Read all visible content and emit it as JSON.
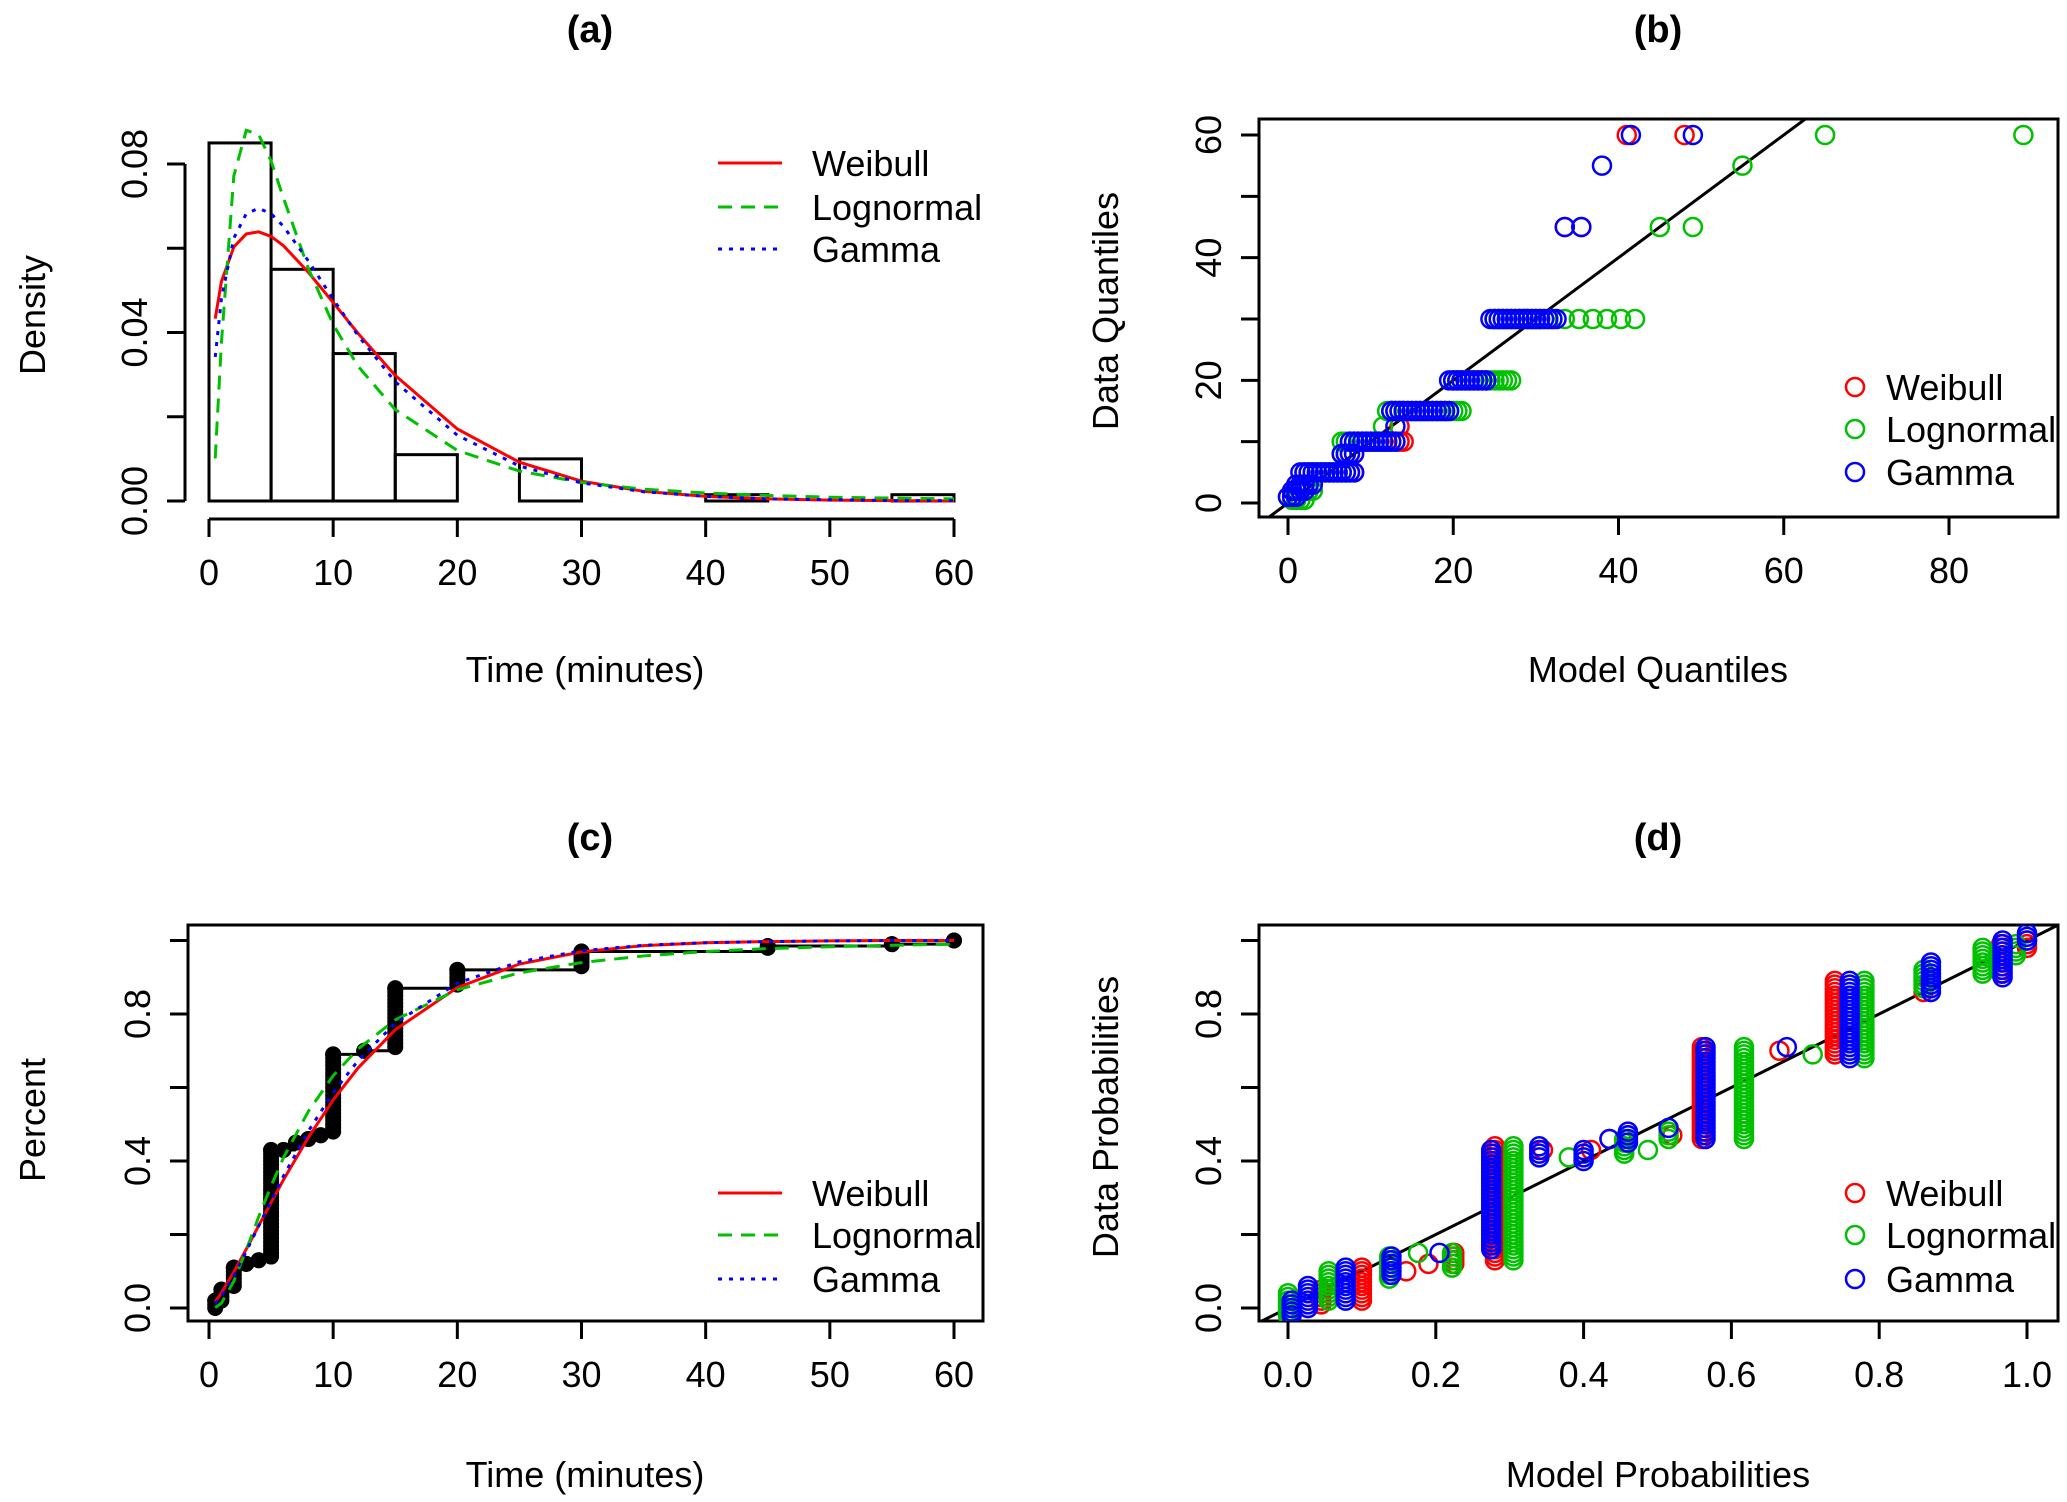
{
  "chart_data": [
    {
      "panel_title": "(a)",
      "type": "histogram+line",
      "xlabel": "Time (minutes)",
      "ylabel": "Density",
      "xlim": [
        0,
        60
      ],
      "ylim": [
        0,
        0.08
      ],
      "xticks": [
        0,
        10,
        20,
        30,
        40,
        50,
        60
      ],
      "xtick_labels": [
        "0",
        "10",
        "20",
        "30",
        "40",
        "50",
        "60"
      ],
      "yticks": [
        0,
        0.02,
        0.04,
        0.06,
        0.08
      ],
      "ytick_labels": [
        "0.00",
        "",
        "0.04",
        "",
        "0.08"
      ],
      "histogram": {
        "bin_edges": [
          0,
          5,
          10,
          15,
          20,
          25,
          30,
          35,
          40,
          45,
          50,
          55,
          60
        ],
        "density": [
          0.085,
          0.055,
          0.035,
          0.011,
          0,
          0.01,
          0,
          0,
          0.0015,
          0,
          0,
          0.0015
        ]
      },
      "curve_x": [
        0.5,
        1,
        2,
        3,
        4,
        5,
        6,
        8,
        10,
        12,
        15,
        20,
        25,
        30,
        35,
        40,
        45,
        50,
        55,
        60
      ],
      "series": [
        {
          "name": "Weibull",
          "color": "#ff0000",
          "linestyle": "solid",
          "values": [
            0.0433,
            0.0521,
            0.0603,
            0.0634,
            0.0639,
            0.0628,
            0.0606,
            0.0543,
            0.0471,
            0.0398,
            0.0298,
            0.0171,
            0.0092,
            0.0047,
            0.0023,
            0.0011,
            0.0005,
            0.0002,
            0.0001,
            0.0
          ]
        },
        {
          "name": "Lognormal",
          "color": "#00c000",
          "linestyle": "dashed",
          "values": [
            0.0101,
            0.0376,
            0.0772,
            0.088,
            0.087,
            0.0807,
            0.0719,
            0.0552,
            0.0419,
            0.032,
            0.0217,
            0.012,
            0.0071,
            0.0044,
            0.0028,
            0.0019,
            0.0013,
            0.0009,
            0.0007,
            0.0005
          ]
        },
        {
          "name": "Gamma",
          "color": "#0000ff",
          "linestyle": "dotted",
          "values": [
            0.0342,
            0.048,
            0.0624,
            0.0682,
            0.0695,
            0.0682,
            0.0652,
            0.057,
            0.0479,
            0.0393,
            0.0283,
            0.0156,
            0.0083,
            0.0043,
            0.0022,
            0.0011,
            0.0005,
            0.0003,
            0.0001,
            0.0001
          ]
        }
      ],
      "legend_position": "top-right"
    },
    {
      "panel_title": "(b)",
      "type": "scatter",
      "xlabel": "Model Quantiles",
      "ylabel": "Data Quantiles",
      "xlim": [
        0,
        90
      ],
      "ylim": [
        0,
        60
      ],
      "xticks": [
        0,
        20,
        40,
        60,
        80
      ],
      "xtick_labels": [
        "0",
        "20",
        "40",
        "60",
        "80"
      ],
      "yticks": [
        0,
        10,
        20,
        30,
        40,
        50,
        60
      ],
      "ytick_labels": [
        "0",
        "",
        "20",
        "",
        "40",
        "",
        "60"
      ],
      "reference_line": "y = x",
      "series": [
        {
          "name": "Weibull",
          "color": "#ff0000",
          "runs_y_xfrom_xto": [
            [
              1,
              0,
              1
            ],
            [
              2,
              0.5,
              2
            ],
            [
              3,
              1,
              3
            ],
            [
              5,
              2,
              8
            ],
            [
              8,
              6.5,
              8
            ],
            [
              10,
              7.5,
              14
            ],
            [
              12.5,
              13.5,
              13.5
            ],
            [
              15,
              12.5,
              19
            ],
            [
              20,
              20,
              24
            ],
            [
              30,
              25,
              30.5
            ],
            [
              45,
              33.5,
              33.5
            ],
            [
              45,
              35.5,
              35.5
            ],
            [
              60,
              41,
              41
            ],
            [
              60,
              48,
              48
            ]
          ]
        },
        {
          "name": "Lognormal",
          "color": "#00c000",
          "runs_y_xfrom_xto": [
            [
              0.5,
              0.5,
              2
            ],
            [
              2,
              1,
              3
            ],
            [
              5,
              2.5,
              7
            ],
            [
              8,
              6.5,
              7
            ],
            [
              10,
              6.5,
              12
            ],
            [
              12.5,
              11.5,
              11.5
            ],
            [
              15,
              12,
              21
            ],
            [
              20,
              20,
              27
            ],
            [
              30,
              25,
              32
            ],
            [
              30,
              33.5,
              42
            ],
            [
              45,
              45,
              45
            ],
            [
              45,
              49,
              49
            ],
            [
              55,
              55,
              55
            ],
            [
              60,
              65,
              65
            ],
            [
              60,
              89,
              89
            ]
          ]
        },
        {
          "name": "Gamma",
          "color": "#0000ff",
          "runs_y_xfrom_xto": [
            [
              1,
              0,
              1
            ],
            [
              2,
              0.5,
              2
            ],
            [
              3,
              1,
              3
            ],
            [
              5,
              1.5,
              8
            ],
            [
              8,
              6.5,
              8
            ],
            [
              10,
              7.5,
              13
            ],
            [
              12.5,
              13,
              13
            ],
            [
              15,
              12.5,
              19.5
            ],
            [
              20,
              19.5,
              24
            ],
            [
              30,
              24.5,
              32.5
            ],
            [
              45,
              33.5,
              33.5
            ],
            [
              45,
              35.5,
              35.5
            ],
            [
              55,
              38,
              38
            ],
            [
              60,
              41.5,
              41.5
            ],
            [
              60,
              49,
              49
            ]
          ]
        }
      ],
      "legend_position": "bottom-right"
    },
    {
      "panel_title": "(c)",
      "type": "line",
      "xlabel": "Time (minutes)",
      "ylabel": "Percent",
      "xlim": [
        0,
        60
      ],
      "ylim": [
        0,
        1
      ],
      "xticks": [
        0,
        10,
        20,
        30,
        40,
        50,
        60
      ],
      "xtick_labels": [
        "0",
        "10",
        "20",
        "30",
        "40",
        "50",
        "60"
      ],
      "yticks": [
        0,
        0.2,
        0.4,
        0.6,
        0.8,
        1.0
      ],
      "ytick_labels": [
        "0.0",
        "",
        "0.4",
        "",
        "0.8",
        ""
      ],
      "ecdf_x_ylow_yhigh": [
        [
          0.5,
          0,
          0.02
        ],
        [
          1,
          0.02,
          0.05
        ],
        [
          2,
          0.06,
          0.11
        ],
        [
          3,
          0.12,
          0.12
        ],
        [
          4,
          0.13,
          0.13
        ],
        [
          5,
          0.14,
          0.43
        ],
        [
          6,
          0.43,
          0.43
        ],
        [
          7,
          0.45,
          0.45
        ],
        [
          8,
          0.46,
          0.46
        ],
        [
          9,
          0.47,
          0.47
        ],
        [
          10,
          0.48,
          0.69
        ],
        [
          12.5,
          0.7,
          0.7
        ],
        [
          15,
          0.71,
          0.87
        ],
        [
          20,
          0.88,
          0.92
        ],
        [
          30,
          0.93,
          0.97
        ],
        [
          45,
          0.98,
          0.985
        ],
        [
          55,
          0.99,
          0.99
        ],
        [
          60,
          1,
          1
        ]
      ],
      "curve_x": [
        0.5,
        1,
        2,
        3,
        4,
        5,
        6,
        8,
        10,
        12,
        15,
        20,
        25,
        30,
        35,
        40,
        45,
        50,
        55,
        60
      ],
      "series": [
        {
          "name": "Weibull",
          "color": "#ff0000",
          "linestyle": "solid",
          "values": [
            0.017,
            0.041,
            0.098,
            0.16,
            0.224,
            0.287,
            0.349,
            0.464,
            0.566,
            0.653,
            0.757,
            0.872,
            0.936,
            0.969,
            0.986,
            0.994,
            0.997,
            0.999,
            1.0,
            1.0
          ]
        },
        {
          "name": "Lognormal",
          "color": "#00c000",
          "linestyle": "dashed",
          "values": [
            0.001,
            0.013,
            0.073,
            0.158,
            0.248,
            0.332,
            0.409,
            0.535,
            0.632,
            0.705,
            0.784,
            0.866,
            0.912,
            0.94,
            0.958,
            0.97,
            0.978,
            0.983,
            0.987,
            0.99
          ]
        },
        {
          "name": "Gamma",
          "color": "#0000ff",
          "linestyle": "dotted",
          "values": [
            0.012,
            0.032,
            0.088,
            0.154,
            0.223,
            0.292,
            0.359,
            0.481,
            0.586,
            0.673,
            0.775,
            0.884,
            0.942,
            0.972,
            0.987,
            0.994,
            0.997,
            0.999,
            1.0,
            1.0
          ]
        }
      ],
      "legend_position": "bottom-right"
    },
    {
      "panel_title": "(d)",
      "type": "scatter",
      "xlabel": "Model Probabilities",
      "ylabel": "Data Probabilities",
      "xlim": [
        0,
        1
      ],
      "ylim": [
        0,
        1
      ],
      "xticks": [
        0,
        0.2,
        0.4,
        0.6,
        0.8,
        1.0
      ],
      "xtick_labels": [
        "0.0",
        "0.2",
        "0.4",
        "0.6",
        "0.8",
        "1.0"
      ],
      "yticks": [
        0,
        0.2,
        0.4,
        0.6,
        0.8,
        1.0
      ],
      "ytick_labels": [
        "0.0",
        "",
        "0.4",
        "",
        "0.8",
        ""
      ],
      "reference_line": "y = x",
      "series": [
        {
          "name": "Weibull",
          "color": "#ff0000",
          "runs_x_yfrom_yto": [
            [
              0.027,
              0.0,
              0.0
            ],
            [
              0.045,
              0.01,
              0.05
            ],
            [
              0.1,
              0.02,
              0.11
            ],
            [
              0.16,
              0.1,
              0.1
            ],
            [
              0.19,
              0.12,
              0.12
            ],
            [
              0.225,
              0.12,
              0.15
            ],
            [
              0.28,
              0.13,
              0.44
            ],
            [
              0.345,
              0.43,
              0.43
            ],
            [
              0.41,
              0.43,
              0.43
            ],
            [
              0.435,
              0.46,
              0.46
            ],
            [
              0.46,
              0.47,
              0.47
            ],
            [
              0.52,
              0.47,
              0.47
            ],
            [
              0.56,
              0.46,
              0.71
            ],
            [
              0.665,
              0.7,
              0.7
            ],
            [
              0.74,
              0.69,
              0.89
            ],
            [
              0.86,
              0.86,
              0.86
            ],
            [
              0.965,
              0.91,
              0.99
            ],
            [
              1.0,
              0.98,
              1.0
            ]
          ]
        },
        {
          "name": "Lognormal",
          "color": "#00c000",
          "runs_x_yfrom_yto": [
            [
              0.0,
              -0.02,
              0.04
            ],
            [
              0.055,
              0.02,
              0.1
            ],
            [
              0.137,
              0.08,
              0.14
            ],
            [
              0.176,
              0.15,
              0.15
            ],
            [
              0.222,
              0.11,
              0.15
            ],
            [
              0.305,
              0.13,
              0.44
            ],
            [
              0.38,
              0.41,
              0.41
            ],
            [
              0.455,
              0.42,
              0.46
            ],
            [
              0.487,
              0.43,
              0.43
            ],
            [
              0.515,
              0.46,
              0.48
            ],
            [
              0.617,
              0.46,
              0.71
            ],
            [
              0.71,
              0.69,
              0.69
            ],
            [
              0.78,
              0.68,
              0.89
            ],
            [
              0.86,
              0.87,
              0.92
            ],
            [
              0.94,
              0.91,
              0.98
            ],
            [
              0.985,
              0.96,
              0.99
            ]
          ]
        },
        {
          "name": "Gamma",
          "color": "#0000ff",
          "runs_x_yfrom_yto": [
            [
              0.005,
              -0.02,
              0.02
            ],
            [
              0.027,
              0.0,
              0.06
            ],
            [
              0.078,
              0.02,
              0.11
            ],
            [
              0.14,
              0.09,
              0.14
            ],
            [
              0.205,
              0.15,
              0.15
            ],
            [
              0.275,
              0.16,
              0.43
            ],
            [
              0.34,
              0.41,
              0.44
            ],
            [
              0.4,
              0.4,
              0.43
            ],
            [
              0.435,
              0.46,
              0.46
            ],
            [
              0.46,
              0.45,
              0.48
            ],
            [
              0.515,
              0.49,
              0.49
            ],
            [
              0.565,
              0.46,
              0.71
            ],
            [
              0.675,
              0.71,
              0.71
            ],
            [
              0.76,
              0.68,
              0.89
            ],
            [
              0.87,
              0.86,
              0.94
            ],
            [
              0.967,
              0.9,
              1.0
            ],
            [
              1.0,
              1.0,
              1.02
            ]
          ]
        }
      ],
      "legend_position": "bottom-right"
    }
  ]
}
